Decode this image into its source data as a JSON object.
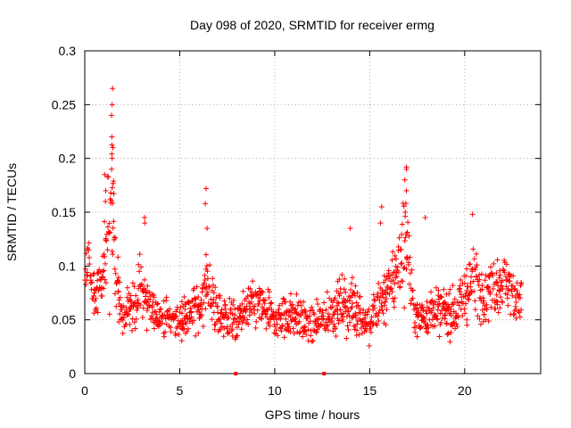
{
  "chart_data": {
    "type": "scatter",
    "title": "Day 098 of 2020, SRMTID for receiver ermg",
    "xlabel": "GPS time / hours",
    "ylabel": "SRMTID / TECUs",
    "xlim": [
      0,
      24
    ],
    "ylim": [
      0,
      0.3
    ],
    "x_ticks": [
      0,
      5,
      10,
      15,
      20
    ],
    "x_tick_labels": [
      "0",
      "5",
      "10",
      "15",
      "20"
    ],
    "y_ticks": [
      0,
      0.05,
      0.1,
      0.15,
      0.2,
      0.25,
      0.3
    ],
    "y_tick_labels": [
      "0",
      "0.05",
      "0.1",
      "0.15",
      "0.2",
      "0.25",
      "0.3"
    ],
    "grid": true,
    "marker": "+",
    "series": [
      {
        "name": "SRMTID",
        "color": "#ff0000",
        "x_range": [
          0,
          23
        ],
        "profile": [
          [
            0.0,
            0.085,
            0.025
          ],
          [
            0.2,
            0.105,
            0.02
          ],
          [
            0.5,
            0.07,
            0.02
          ],
          [
            0.8,
            0.08,
            0.02
          ],
          [
            1.0,
            0.095,
            0.03
          ],
          [
            1.2,
            0.13,
            0.05
          ],
          [
            1.45,
            0.16,
            0.08
          ],
          [
            1.6,
            0.1,
            0.03
          ],
          [
            1.9,
            0.055,
            0.015
          ],
          [
            2.5,
            0.06,
            0.018
          ],
          [
            3.0,
            0.085,
            0.03
          ],
          [
            3.3,
            0.06,
            0.02
          ],
          [
            4.0,
            0.055,
            0.015
          ],
          [
            5.0,
            0.05,
            0.018
          ],
          [
            6.0,
            0.06,
            0.02
          ],
          [
            6.4,
            0.085,
            0.03
          ],
          [
            7.0,
            0.055,
            0.02
          ],
          [
            8.0,
            0.05,
            0.018
          ],
          [
            9.0,
            0.065,
            0.022
          ],
          [
            10.0,
            0.05,
            0.018
          ],
          [
            11.0,
            0.055,
            0.02
          ],
          [
            12.0,
            0.045,
            0.015
          ],
          [
            13.0,
            0.06,
            0.02
          ],
          [
            14.0,
            0.065,
            0.025
          ],
          [
            15.0,
            0.045,
            0.015
          ],
          [
            15.5,
            0.07,
            0.03
          ],
          [
            16.0,
            0.075,
            0.025
          ],
          [
            16.5,
            0.1,
            0.035
          ],
          [
            16.9,
            0.13,
            0.05
          ],
          [
            17.2,
            0.08,
            0.03
          ],
          [
            17.5,
            0.05,
            0.015
          ],
          [
            18.5,
            0.06,
            0.02
          ],
          [
            19.5,
            0.055,
            0.018
          ],
          [
            20.0,
            0.07,
            0.025
          ],
          [
            20.5,
            0.09,
            0.03
          ],
          [
            21.0,
            0.075,
            0.025
          ],
          [
            22.0,
            0.085,
            0.025
          ],
          [
            23.0,
            0.07,
            0.02
          ]
        ],
        "peaks": [
          {
            "x": 1.45,
            "y": [
              0.19,
              0.2,
              0.21,
              0.22,
              0.24,
              0.25,
              0.265
            ]
          },
          {
            "x": 1.1,
            "y": [
              0.16,
              0.17,
              0.185
            ]
          },
          {
            "x": 6.4,
            "y": [
              0.135,
              0.158,
              0.172
            ]
          },
          {
            "x": 16.9,
            "y": [
              0.15,
              0.17,
              0.18,
              0.19,
              0.192
            ]
          },
          {
            "x": 15.6,
            "y": [
              0.14,
              0.155
            ]
          },
          {
            "x": 17.9,
            "y": [
              0.145
            ]
          },
          {
            "x": 20.4,
            "y": [
              0.148
            ]
          },
          {
            "x": 14.0,
            "y": [
              0.135
            ]
          },
          {
            "x": 3.1,
            "y": [
              0.14,
              0.145
            ]
          }
        ],
        "zero_markers_x": [
          7.95,
          12.6
        ]
      }
    ]
  }
}
